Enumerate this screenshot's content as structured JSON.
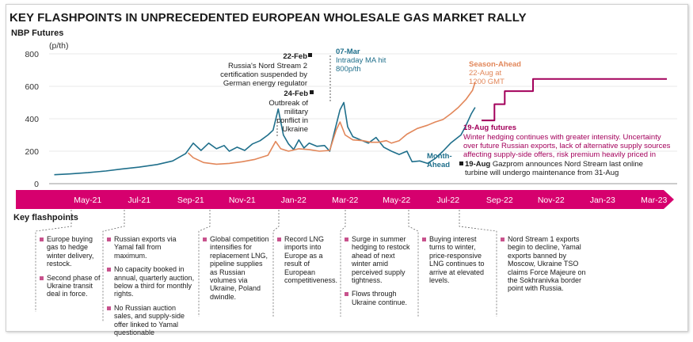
{
  "title": "KEY FLASHPOINTS IN UNPRECEDENTED EUROPEAN WHOLESALE GAS MARKET RALLY",
  "subtitle": "NBP Futures",
  "unit": "(p/th)",
  "colors": {
    "month_ahead": "#1f6f8b",
    "season_ahead": "#e2875a",
    "futures": "#a3005b",
    "axis_bar": "#d6006e"
  },
  "annotations": {
    "feb22": [
      "22-Feb",
      "Russia's Nord Stream 2",
      "certification suspended by",
      "German energy regulator"
    ],
    "feb24": [
      "24-Feb",
      "Outbreak of",
      "military",
      "conflict in",
      "Ukraine"
    ],
    "mar07": [
      "07-Mar",
      "Intraday MA hit",
      "800p/th"
    ],
    "season_ahead_label": [
      "Season-Ahead",
      "22-Aug at",
      "1200 GMT"
    ],
    "month_ahead_label": [
      "Month-",
      "Ahead"
    ],
    "aug19_futures": [
      "19-Aug futures",
      "Winter hedging continues with greater intensity. Uncertainty",
      "over future Russian exports, lack of alternative supply sources",
      "affecting supply-side offers, risk premium heavily priced in"
    ],
    "aug19_gazprom": [
      "19-Aug",
      " Gazprom announces Nord Stream last online",
      "turbine will undergo maintenance from 31-Aug"
    ]
  },
  "flashpoints_title": "Key flashpoints",
  "flashpoints": [
    {
      "items": [
        "Europe buying gas to hedge winter delivery, restock.",
        "Second phase of Ukraine transit deal in force."
      ]
    },
    {
      "items": [
        "Russian exports via Yamal fall from maximum.",
        "No capacity booked in annual, quarterly auction, below a third for monthly rights.",
        "No Russian auction sales, and supply-side offer linked to Yamal questionable"
      ]
    },
    {
      "items": [
        "Global competition intensifies for replacement LNG, pipeline supplies as Russian volumes via Ukraine, Poland dwindle."
      ]
    },
    {
      "items": [
        "Record LNG imports into Europe as a result of European competitiveness."
      ]
    },
    {
      "items": [
        "Surge in summer hedging to restock ahead of next winter amid perceived supply tightness.",
        "Flows through Ukraine continue."
      ]
    },
    {
      "items": [
        "Buying interest turns to winter, price-responsive LNG continues to arrive at elevated levels."
      ]
    },
    {
      "items": [
        "Nord Stream 1 exports begin to decline, Yamal exports banned by Moscow, Ukraine TSO claims Force Majeure on the Sokhranivka border point with Russia."
      ]
    }
  ],
  "chart_data": {
    "type": "line",
    "title": "KEY FLASHPOINTS IN UNPRECEDENTED EUROPEAN WHOLESALE GAS MARKET RALLY",
    "ylabel": "NBP Futures (p/th)",
    "ylim": [
      0,
      800
    ],
    "yticks": [
      0,
      200,
      400,
      600,
      800
    ],
    "x_unit": "months since Apr-2021",
    "xlim": [
      0,
      24.4
    ],
    "x_ticks": [
      {
        "label": "May-21",
        "x": 1.5
      },
      {
        "label": "Jul-21",
        "x": 3.5
      },
      {
        "label": "Sep-21",
        "x": 5.5
      },
      {
        "label": "Nov-21",
        "x": 7.5
      },
      {
        "label": "Jan-22",
        "x": 9.5
      },
      {
        "label": "Mar-22",
        "x": 11.5
      },
      {
        "label": "May-22",
        "x": 13.5
      },
      {
        "label": "Jul-22",
        "x": 15.5
      },
      {
        "label": "Sep-22",
        "x": 17.5
      },
      {
        "label": "Nov-22",
        "x": 19.5
      },
      {
        "label": "Jan-23",
        "x": 21.5
      },
      {
        "label": "Mar-23",
        "x": 23.5
      }
    ],
    "series": [
      {
        "name": "Month-Ahead",
        "color": "#1f6f8b",
        "points": [
          [
            0.2,
            55
          ],
          [
            0.8,
            60
          ],
          [
            1.5,
            68
          ],
          [
            2.2,
            78
          ],
          [
            2.8,
            90
          ],
          [
            3.5,
            102
          ],
          [
            4.2,
            118
          ],
          [
            4.8,
            140
          ],
          [
            5.3,
            185
          ],
          [
            5.6,
            250
          ],
          [
            5.9,
            205
          ],
          [
            6.2,
            250
          ],
          [
            6.5,
            215
          ],
          [
            6.8,
            235
          ],
          [
            7.0,
            200
          ],
          [
            7.3,
            225
          ],
          [
            7.6,
            205
          ],
          [
            7.9,
            245
          ],
          [
            8.2,
            265
          ],
          [
            8.5,
            300
          ],
          [
            8.7,
            330
          ],
          [
            8.9,
            460
          ],
          [
            9.1,
            300
          ],
          [
            9.3,
            245
          ],
          [
            9.5,
            210
          ],
          [
            9.7,
            270
          ],
          [
            9.9,
            220
          ],
          [
            10.1,
            250
          ],
          [
            10.4,
            230
          ],
          [
            10.7,
            235
          ],
          [
            10.9,
            200
          ],
          [
            11.1,
            330
          ],
          [
            11.3,
            455
          ],
          [
            11.45,
            500
          ],
          [
            11.6,
            350
          ],
          [
            11.8,
            290
          ],
          [
            12.1,
            270
          ],
          [
            12.4,
            250
          ],
          [
            12.7,
            285
          ],
          [
            13.0,
            225
          ],
          [
            13.3,
            200
          ],
          [
            13.6,
            180
          ],
          [
            13.9,
            200
          ],
          [
            14.1,
            135
          ],
          [
            14.4,
            140
          ],
          [
            14.7,
            125
          ],
          [
            15.0,
            155
          ],
          [
            15.3,
            200
          ],
          [
            15.6,
            250
          ],
          [
            15.8,
            275
          ],
          [
            16.0,
            300
          ],
          [
            16.2,
            360
          ],
          [
            16.4,
            430
          ],
          [
            16.55,
            470
          ]
        ]
      },
      {
        "name": "Season-Ahead",
        "color": "#e2875a",
        "points": [
          [
            5.4,
            190
          ],
          [
            5.6,
            160
          ],
          [
            6.0,
            130
          ],
          [
            6.5,
            120
          ],
          [
            7.0,
            125
          ],
          [
            7.5,
            135
          ],
          [
            8.0,
            150
          ],
          [
            8.5,
            175
          ],
          [
            8.8,
            260
          ],
          [
            9.0,
            215
          ],
          [
            9.3,
            200
          ],
          [
            9.7,
            215
          ],
          [
            10.1,
            210
          ],
          [
            10.5,
            200
          ],
          [
            10.9,
            205
          ],
          [
            11.15,
            330
          ],
          [
            11.3,
            380
          ],
          [
            11.5,
            300
          ],
          [
            11.8,
            270
          ],
          [
            12.2,
            265
          ],
          [
            12.5,
            255
          ],
          [
            12.8,
            255
          ],
          [
            13.1,
            265
          ],
          [
            13.3,
            250
          ],
          [
            13.6,
            265
          ],
          [
            13.9,
            305
          ],
          [
            14.3,
            340
          ],
          [
            14.7,
            360
          ],
          [
            15.0,
            380
          ],
          [
            15.3,
            395
          ],
          [
            15.6,
            430
          ],
          [
            15.9,
            470
          ],
          [
            16.2,
            520
          ],
          [
            16.45,
            575
          ],
          [
            16.55,
            625
          ]
        ]
      },
      {
        "name": "19-Aug futures",
        "color": "#a3005b",
        "points": [
          [
            16.8,
            390
          ],
          [
            17.3,
            390
          ],
          [
            17.3,
            490
          ],
          [
            17.7,
            490
          ],
          [
            17.7,
            570
          ],
          [
            18.8,
            570
          ],
          [
            18.8,
            645
          ],
          [
            24.0,
            645
          ]
        ]
      }
    ],
    "events": [
      {
        "label": "22-Feb",
        "x": 10.7,
        "y": 455
      },
      {
        "label": "24-Feb",
        "x": 10.77,
        "y": 580
      },
      {
        "label": "07-Mar",
        "x": 11.2,
        "y": 800
      },
      {
        "label": "Season-Ahead 22-Aug",
        "x": 16.7,
        "y": 620
      }
    ]
  }
}
